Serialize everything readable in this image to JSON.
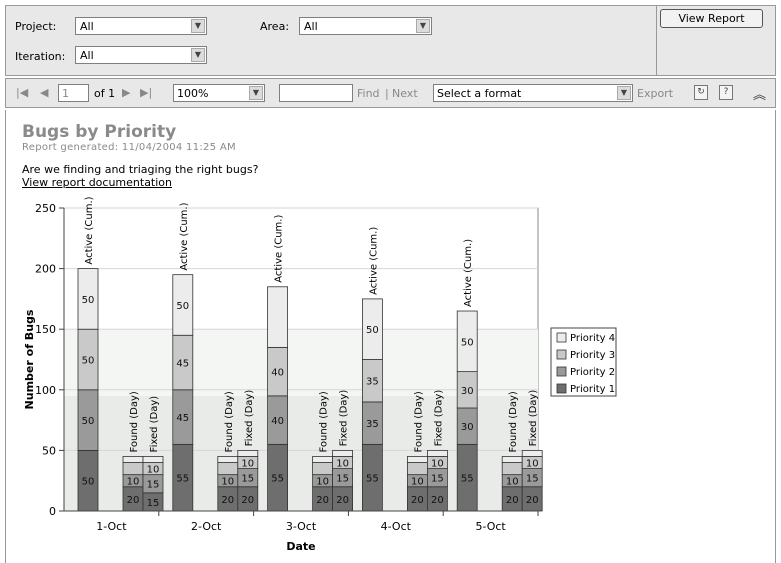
{
  "params": {
    "project_label": "Project:",
    "project_value": "All",
    "area_label": "Area:",
    "area_value": "All",
    "iteration_label": "Iteration:",
    "iteration_value": "All",
    "view_report": "View Report"
  },
  "toolbar": {
    "page_value": "1",
    "page_of": "of 1",
    "zoom": "100%",
    "find": "Find",
    "sep": "|",
    "next": "Next",
    "format": "Select a format",
    "export": "Export"
  },
  "report": {
    "title": "Bugs by Priority",
    "generated": "Report generated:  11/04/2004 11:25 AM",
    "question": "Are we finding and triaging the right bugs?",
    "doc_link": "View report documentation"
  },
  "chart_data": {
    "type": "bar",
    "stacked": true,
    "categories": [
      "1-Oct",
      "2-Oct",
      "3-Oct",
      "4-Oct",
      "5-Oct"
    ],
    "bar_groups": [
      "Active (Cum.)",
      "Found (Day)",
      "Fixed (Day)"
    ],
    "xlabel": "Date",
    "ylabel": "Number of Bugs",
    "ylim": [
      0,
      250
    ],
    "yticks": [
      0,
      50,
      100,
      150,
      200,
      250
    ],
    "legend_position": "right",
    "series": [
      {
        "name": "Priority 1",
        "color": "#6e6e6e",
        "active": [
          50,
          55,
          55,
          55,
          55
        ],
        "found": [
          20,
          20,
          20,
          20,
          20
        ],
        "fixed": [
          15,
          20,
          20,
          20,
          20
        ],
        "labels": {
          "active": [
            "50",
            "55",
            "55",
            "55",
            "55"
          ],
          "found": [
            "20",
            "20",
            "20",
            "20",
            "20"
          ],
          "fixed": [
            "15",
            "20",
            "20",
            "20",
            "20"
          ]
        }
      },
      {
        "name": "Priority 2",
        "color": "#9a9a9a",
        "active": [
          50,
          45,
          40,
          35,
          30
        ],
        "found": [
          10,
          10,
          10,
          10,
          10
        ],
        "fixed": [
          15,
          15,
          15,
          15,
          15
        ],
        "labels": {
          "active": [
            "50",
            "45",
            "40",
            "35",
            "30"
          ],
          "found": [
            "10",
            "10",
            "10",
            "10",
            "10"
          ],
          "fixed": [
            "15",
            "15",
            "15",
            "15",
            "15"
          ]
        }
      },
      {
        "name": "Priority 3",
        "color": "#c9c9c9",
        "active": [
          50,
          45,
          40,
          35,
          30
        ],
        "found": [
          10,
          10,
          10,
          10,
          10
        ],
        "fixed": [
          10,
          10,
          10,
          10,
          10
        ],
        "labels": {
          "active": [
            "50",
            "45",
            "40",
            "35",
            "30"
          ],
          "found": [
            "",
            "",
            "",
            "",
            ""
          ],
          "fixed": [
            "10",
            "10",
            "10",
            "10",
            "10"
          ]
        }
      },
      {
        "name": "Priority 4",
        "color": "#ececec",
        "active": [
          50,
          50,
          50,
          50,
          50
        ],
        "found": [
          5,
          5,
          5,
          5,
          5
        ],
        "fixed": [
          5,
          5,
          5,
          5,
          5
        ],
        "labels": {
          "active": [
            "50",
            "50",
            "",
            "50",
            "50"
          ],
          "found": [
            "",
            "",
            "",
            "",
            ""
          ],
          "fixed": [
            "",
            "",
            "",
            "",
            ""
          ]
        }
      }
    ],
    "colors": {
      "plot_band_light": "#f4f6f4",
      "plot_band_dark": "#e9ebe9",
      "bar_stroke": "#333333"
    }
  }
}
